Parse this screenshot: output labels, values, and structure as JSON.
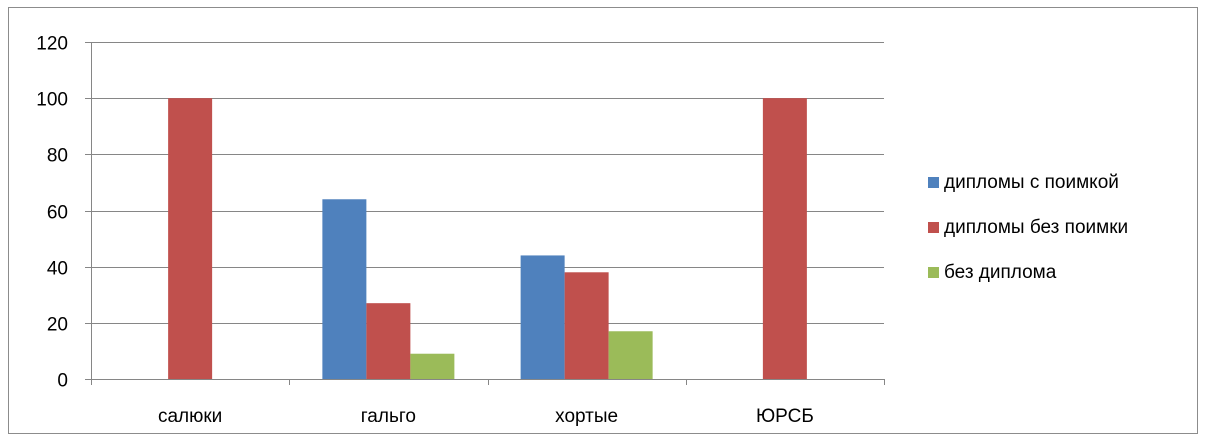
{
  "chart_data": {
    "type": "bar",
    "title": "",
    "xlabel": "",
    "ylabel": "",
    "categories": [
      "салюки",
      "гальго",
      "хортые",
      "ЮРСБ"
    ],
    "series": [
      {
        "name": "дипломы с поимкой",
        "values": [
          0,
          64,
          44,
          0
        ],
        "color": "#4f81bd"
      },
      {
        "name": "дипломы без поимки",
        "values": [
          100,
          27,
          38,
          100
        ],
        "color": "#c0504d"
      },
      {
        "name": "без диплома",
        "values": [
          0,
          9,
          17,
          0
        ],
        "color": "#9bbb59"
      }
    ],
    "ylim": [
      0,
      120
    ],
    "yticks": [
      0,
      20,
      40,
      60,
      80,
      100,
      120
    ],
    "grid": true,
    "legend_position": "right"
  }
}
